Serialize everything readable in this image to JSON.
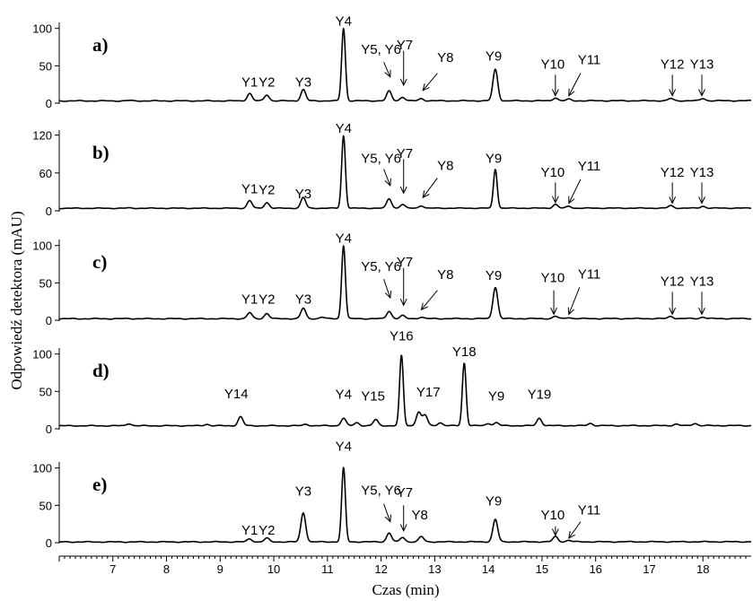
{
  "chart_data": {
    "type": "line",
    "ylabel": "Odpowiedź detektora (mAU)",
    "xlabel": "Czas (min)",
    "xlim": [
      6.0,
      18.9
    ],
    "x_ticks": [
      "7",
      "8",
      "9",
      "10",
      "11",
      "12",
      "13",
      "14",
      "15",
      "16",
      "17",
      "18"
    ],
    "panels": [
      {
        "id": "a",
        "label": "a)",
        "ylim": [
          0,
          108
        ],
        "y_ticks": [
          "0",
          "50",
          "100"
        ],
        "baseline": 3,
        "peaks": [
          [
            7.3,
            0.5
          ],
          [
            9.55,
            10
          ],
          [
            9.87,
            8
          ],
          [
            10.55,
            15
          ],
          [
            11.3,
            97
          ],
          [
            12.15,
            13
          ],
          [
            12.4,
            5
          ],
          [
            12.75,
            3
          ],
          [
            14.13,
            42
          ],
          [
            15.25,
            4
          ],
          [
            15.5,
            2
          ],
          [
            17.4,
            3
          ],
          [
            18.0,
            3
          ]
        ],
        "annotations": [
          {
            "text": "Y1",
            "x": 9.55,
            "y": 22
          },
          {
            "text": "Y2",
            "x": 9.87,
            "y": 22
          },
          {
            "text": "Y3",
            "x": 10.55,
            "y": 22
          },
          {
            "text": "Y4",
            "x": 11.3,
            "y": 104
          },
          {
            "text": "Y5, Y6",
            "x": 12.0,
            "y": 66
          },
          {
            "text": "Y7",
            "x": 12.44,
            "y": 72
          },
          {
            "text": "Y8",
            "x": 13.2,
            "y": 55
          },
          {
            "text": "Y9",
            "x": 14.1,
            "y": 57
          },
          {
            "text": "Y10",
            "x": 15.2,
            "y": 46
          },
          {
            "text": "Y11",
            "x": 15.88,
            "y": 52
          },
          {
            "text": "Y12",
            "x": 17.43,
            "y": 46
          },
          {
            "text": "Y13",
            "x": 17.98,
            "y": 46
          }
        ]
      },
      {
        "id": "b",
        "label": "b)",
        "ylim": [
          0,
          128
        ],
        "y_ticks": [
          "0",
          "60",
          "120"
        ],
        "baseline": 4,
        "peaks": [
          [
            7.3,
            0.5
          ],
          [
            9.55,
            12
          ],
          [
            9.87,
            9
          ],
          [
            10.55,
            17
          ],
          [
            11.3,
            115
          ],
          [
            12.15,
            15
          ],
          [
            12.4,
            6
          ],
          [
            12.75,
            4
          ],
          [
            14.13,
            62
          ],
          [
            15.25,
            6
          ],
          [
            15.5,
            3
          ],
          [
            17.4,
            4
          ],
          [
            18.0,
            3
          ]
        ],
        "annotations": [
          {
            "text": "Y1",
            "x": 9.55,
            "y": 28
          },
          {
            "text": "Y2",
            "x": 9.87,
            "y": 26
          },
          {
            "text": "Y3",
            "x": 10.55,
            "y": 20
          },
          {
            "text": "Y4",
            "x": 11.3,
            "y": 124
          },
          {
            "text": "Y5, Y6",
            "x": 12.0,
            "y": 76
          },
          {
            "text": "Y7",
            "x": 12.44,
            "y": 84
          },
          {
            "text": "Y8",
            "x": 13.2,
            "y": 65
          },
          {
            "text": "Y9",
            "x": 14.1,
            "y": 76
          },
          {
            "text": "Y10",
            "x": 15.2,
            "y": 54
          },
          {
            "text": "Y11",
            "x": 15.88,
            "y": 64
          },
          {
            "text": "Y12",
            "x": 17.43,
            "y": 54
          },
          {
            "text": "Y13",
            "x": 17.98,
            "y": 54
          }
        ]
      },
      {
        "id": "c",
        "label": "c)",
        "ylim": [
          0,
          108
        ],
        "y_ticks": [
          "0",
          "50",
          "100"
        ],
        "baseline": 2,
        "peaks": [
          [
            7.3,
            0.3
          ],
          [
            9.55,
            8
          ],
          [
            9.87,
            7
          ],
          [
            10.55,
            14
          ],
          [
            10.9,
            2
          ],
          [
            11.3,
            98
          ],
          [
            12.15,
            10
          ],
          [
            12.4,
            4
          ],
          [
            12.75,
            2
          ],
          [
            14.13,
            42
          ],
          [
            15.25,
            3
          ],
          [
            15.5,
            1.5
          ],
          [
            17.4,
            3
          ],
          [
            18.0,
            2
          ]
        ],
        "annotations": [
          {
            "text": "Y1",
            "x": 9.55,
            "y": 22
          },
          {
            "text": "Y2",
            "x": 9.87,
            "y": 22
          },
          {
            "text": "Y3",
            "x": 10.55,
            "y": 22
          },
          {
            "text": "Y4",
            "x": 11.3,
            "y": 104
          },
          {
            "text": "Y5, Y6",
            "x": 12.0,
            "y": 66
          },
          {
            "text": "Y7",
            "x": 12.44,
            "y": 72
          },
          {
            "text": "Y8",
            "x": 13.2,
            "y": 55
          },
          {
            "text": "Y9",
            "x": 14.1,
            "y": 54
          },
          {
            "text": "Y10",
            "x": 15.2,
            "y": 51
          },
          {
            "text": "Y11",
            "x": 15.88,
            "y": 56
          },
          {
            "text": "Y12",
            "x": 17.43,
            "y": 46
          },
          {
            "text": "Y13",
            "x": 17.98,
            "y": 46
          }
        ]
      },
      {
        "id": "d",
        "label": "d)",
        "ylim": [
          0,
          108
        ],
        "y_ticks": [
          "0",
          "50",
          "100"
        ],
        "baseline": 4,
        "peaks": [
          [
            7.3,
            3
          ],
          [
            8.75,
            2
          ],
          [
            9.38,
            12
          ],
          [
            10.6,
            2
          ],
          [
            11.3,
            10
          ],
          [
            11.55,
            4
          ],
          [
            11.9,
            8
          ],
          [
            12.38,
            94
          ],
          [
            12.7,
            18
          ],
          [
            12.82,
            14
          ],
          [
            13.1,
            4
          ],
          [
            13.55,
            84
          ],
          [
            14.0,
            3
          ],
          [
            14.15,
            4
          ],
          [
            14.95,
            10
          ],
          [
            15.9,
            3
          ],
          [
            17.5,
            2
          ],
          [
            17.85,
            3
          ]
        ],
        "annotations": [
          {
            "text": "Y14",
            "x": 9.3,
            "y": 41
          },
          {
            "text": "Y4",
            "x": 11.3,
            "y": 40
          },
          {
            "text": "Y15",
            "x": 11.85,
            "y": 38
          },
          {
            "text": "Y16",
            "x": 12.38,
            "y": 118
          },
          {
            "text": "Y17",
            "x": 12.88,
            "y": 43
          },
          {
            "text": "Y18",
            "x": 13.55,
            "y": 97
          },
          {
            "text": "Y9",
            "x": 14.15,
            "y": 38
          },
          {
            "text": "Y19",
            "x": 14.95,
            "y": 40
          }
        ]
      },
      {
        "id": "e",
        "label": "e)",
        "ylim": [
          0,
          108
        ],
        "y_ticks": [
          "0",
          "50",
          "100"
        ],
        "baseline": 1,
        "peaks": [
          [
            9.55,
            4
          ],
          [
            9.87,
            5
          ],
          [
            10.55,
            39
          ],
          [
            11.3,
            99
          ],
          [
            12.15,
            12
          ],
          [
            12.4,
            6
          ],
          [
            12.75,
            7
          ],
          [
            14.13,
            30
          ],
          [
            15.25,
            7
          ],
          [
            15.5,
            2
          ]
        ],
        "annotations": [
          {
            "text": "Y1",
            "x": 9.55,
            "y": 11
          },
          {
            "text": "Y2",
            "x": 9.87,
            "y": 11
          },
          {
            "text": "Y3",
            "x": 10.55,
            "y": 63
          },
          {
            "text": "Y4",
            "x": 11.3,
            "y": 123
          },
          {
            "text": "Y5, Y6",
            "x": 12.0,
            "y": 64
          },
          {
            "text": "Y7",
            "x": 12.44,
            "y": 61
          },
          {
            "text": "Y8",
            "x": 12.72,
            "y": 31
          },
          {
            "text": "Y9",
            "x": 14.1,
            "y": 50
          },
          {
            "text": "Y10",
            "x": 15.2,
            "y": 31
          },
          {
            "text": "Y11",
            "x": 15.88,
            "y": 38
          }
        ]
      }
    ],
    "arrows": [
      {
        "panel": "a",
        "from": [
          12.05,
          55
        ],
        "to": [
          12.17,
          35
        ]
      },
      {
        "panel": "a",
        "from": [
          12.42,
          70
        ],
        "to": [
          12.42,
          24
        ]
      },
      {
        "panel": "a",
        "from": [
          13.05,
          40
        ],
        "to": [
          12.78,
          17
        ]
      },
      {
        "panel": "a",
        "from": [
          15.25,
          38
        ],
        "to": [
          15.25,
          10
        ]
      },
      {
        "panel": "a",
        "from": [
          15.72,
          40
        ],
        "to": [
          15.5,
          10
        ]
      },
      {
        "panel": "a",
        "from": [
          17.43,
          38
        ],
        "to": [
          17.43,
          10
        ]
      },
      {
        "panel": "a",
        "from": [
          17.98,
          38
        ],
        "to": [
          17.98,
          10
        ]
      },
      {
        "panel": "b",
        "from": [
          12.05,
          66
        ],
        "to": [
          12.17,
          40
        ]
      },
      {
        "panel": "b",
        "from": [
          12.42,
          82
        ],
        "to": [
          12.42,
          28
        ]
      },
      {
        "panel": "b",
        "from": [
          13.05,
          52
        ],
        "to": [
          12.78,
          21
        ]
      },
      {
        "panel": "b",
        "from": [
          15.25,
          45
        ],
        "to": [
          15.25,
          13
        ]
      },
      {
        "panel": "b",
        "from": [
          15.72,
          50
        ],
        "to": [
          15.5,
          12
        ]
      },
      {
        "panel": "b",
        "from": [
          17.43,
          45
        ],
        "to": [
          17.43,
          12
        ]
      },
      {
        "panel": "b",
        "from": [
          17.98,
          45
        ],
        "to": [
          17.98,
          12
        ]
      },
      {
        "panel": "c",
        "from": [
          12.05,
          55
        ],
        "to": [
          12.17,
          30
        ]
      },
      {
        "panel": "c",
        "from": [
          12.42,
          70
        ],
        "to": [
          12.42,
          20
        ]
      },
      {
        "panel": "c",
        "from": [
          13.05,
          40
        ],
        "to": [
          12.75,
          14
        ]
      },
      {
        "panel": "c",
        "from": [
          15.22,
          40
        ],
        "to": [
          15.22,
          8
        ]
      },
      {
        "panel": "c",
        "from": [
          15.7,
          44
        ],
        "to": [
          15.5,
          8
        ]
      },
      {
        "panel": "c",
        "from": [
          17.43,
          38
        ],
        "to": [
          17.43,
          8
        ]
      },
      {
        "panel": "c",
        "from": [
          17.98,
          38
        ],
        "to": [
          17.98,
          8
        ]
      },
      {
        "panel": "e",
        "from": [
          12.05,
          52
        ],
        "to": [
          12.17,
          28
        ]
      },
      {
        "panel": "e",
        "from": [
          12.42,
          50
        ],
        "to": [
          12.42,
          16
        ]
      },
      {
        "panel": "e",
        "from": [
          15.25,
          22
        ],
        "to": [
          15.25,
          10
        ]
      },
      {
        "panel": "e",
        "from": [
          15.72,
          28
        ],
        "to": [
          15.5,
          6
        ]
      }
    ]
  }
}
